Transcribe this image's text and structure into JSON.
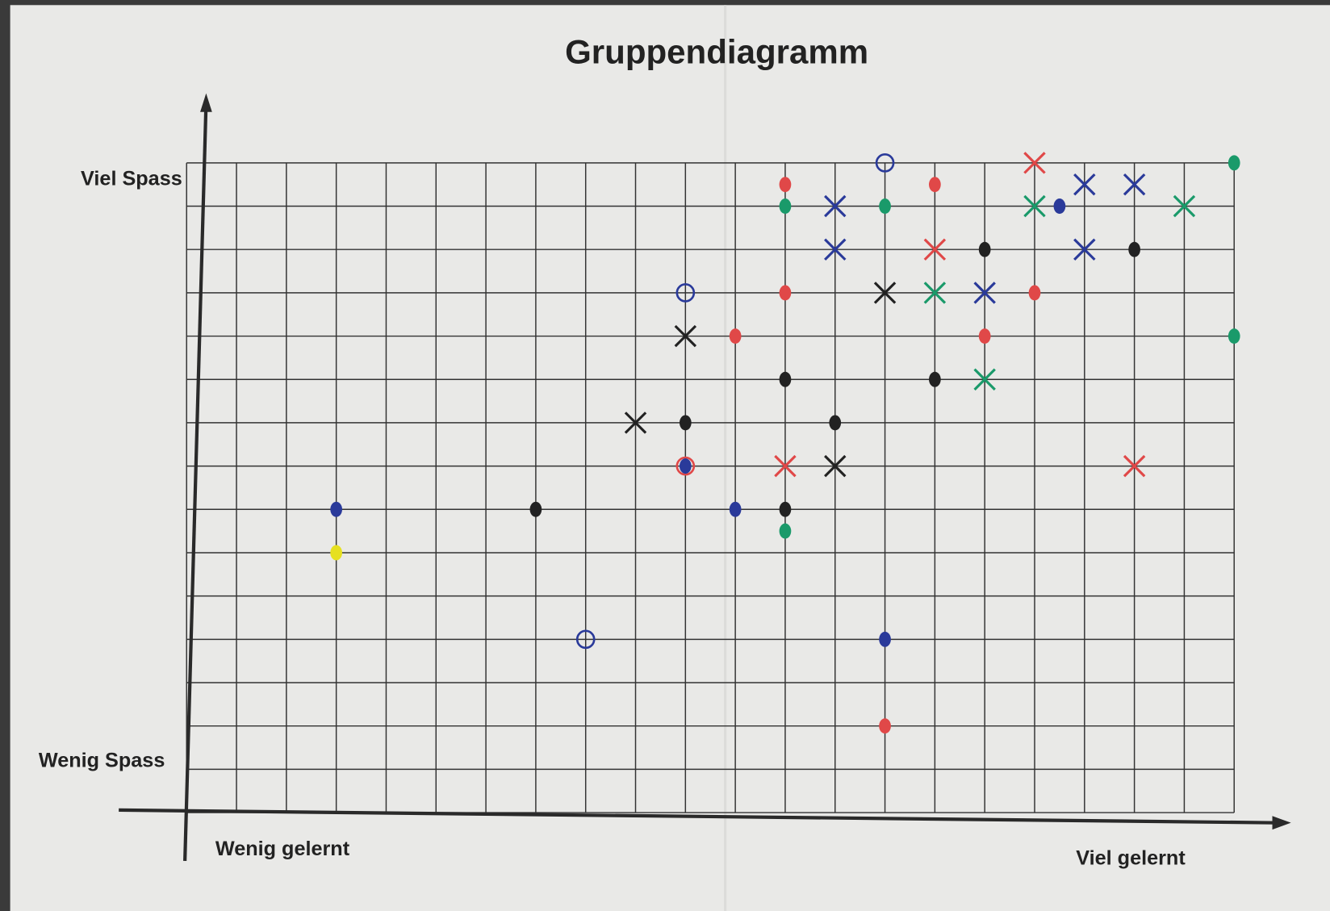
{
  "chart_data": {
    "type": "scatter",
    "title": "Gruppendiagramm",
    "y_label_top": "Viel Spass",
    "y_label_bottom": "Wenig Spass",
    "x_label_left": "Wenig gelernt",
    "x_label_right": "Viel gelernt",
    "xlim": [
      0,
      21
    ],
    "ylim": [
      0,
      15
    ],
    "grid": true,
    "series": [
      {
        "color": "#e04848",
        "x": [
          12,
          12,
          15,
          17,
          15,
          17,
          16,
          11,
          12,
          10,
          19,
          14
        ],
        "values": [
          14.5,
          12,
          14.5,
          15,
          13,
          12,
          11,
          11,
          8,
          8,
          8,
          2
        ],
        "markers": [
          "dot",
          "dot",
          "dot",
          "cross",
          "cross",
          "dot",
          "dot",
          "dot",
          "cross",
          "circle",
          "cross",
          "dot"
        ]
      },
      {
        "color": "#1a9a6a",
        "x": [
          12,
          14,
          17,
          20,
          21,
          15,
          16,
          21,
          12
        ],
        "values": [
          14,
          14,
          14,
          14,
          15,
          12,
          10,
          11,
          6.5
        ],
        "markers": [
          "dot",
          "dot",
          "cross",
          "cross",
          "dot",
          "cross",
          "cross",
          "dot",
          "dot"
        ]
      },
      {
        "color": "#222222",
        "x": [
          16,
          19,
          14,
          10,
          12,
          15,
          9,
          10,
          13,
          13,
          7,
          12
        ],
        "values": [
          13,
          13,
          12,
          11,
          10,
          10,
          9,
          9,
          9,
          8,
          7,
          7
        ],
        "markers": [
          "dot",
          "dot",
          "cross",
          "cross",
          "dot",
          "dot",
          "cross",
          "dot",
          "dot",
          "cross",
          "dot",
          "dot"
        ]
      },
      {
        "color": "#2a3a9a",
        "x": [
          14,
          13,
          13,
          17.5,
          18,
          19,
          18,
          16,
          10,
          10,
          3,
          11,
          8,
          14
        ],
        "values": [
          15,
          14,
          13,
          14,
          14.5,
          14.5,
          13,
          12,
          12,
          8,
          7,
          7,
          4,
          4
        ],
        "markers": [
          "circle",
          "cross",
          "cross",
          "dot",
          "cross",
          "cross",
          "cross",
          "cross",
          "circle",
          "dot",
          "dot",
          "dot",
          "circle",
          "dot"
        ]
      },
      {
        "color": "#e6e020",
        "x": [
          3
        ],
        "values": [
          6
        ],
        "markers": [
          "dot"
        ]
      }
    ]
  }
}
